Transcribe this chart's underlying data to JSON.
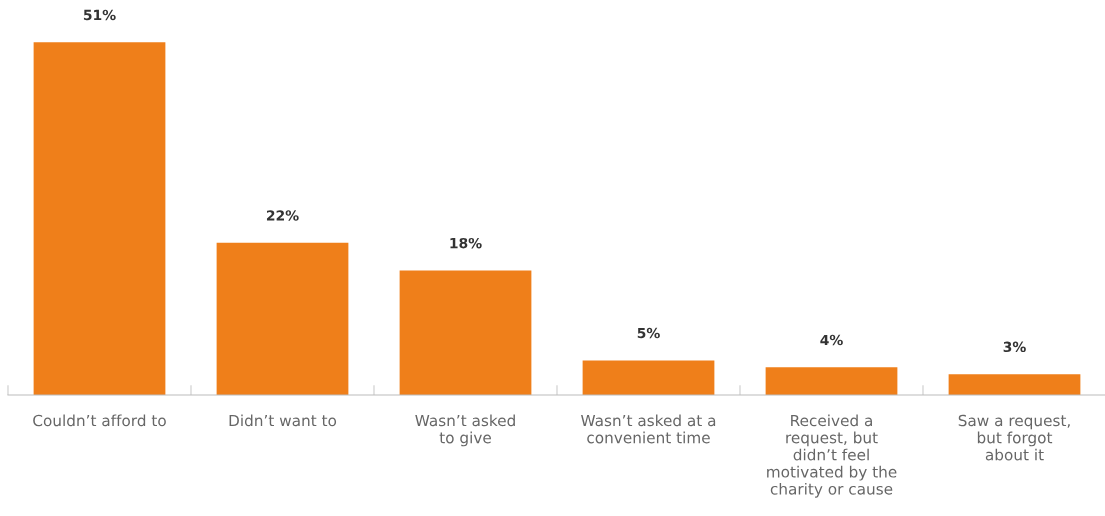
{
  "chart_data": {
    "type": "bar",
    "categories": [
      "Couldn’t afford to",
      "Didn’t want to",
      "Wasn’t asked\nto give",
      "Wasn’t asked at a\nconvenient time",
      "Received a\nrequest, but\ndidn’t feel\nmotivated by the\ncharity or cause",
      "Saw a request,\nbut forgot\nabout it"
    ],
    "values": [
      51,
      22,
      18,
      5,
      4,
      3
    ],
    "value_labels": [
      "51%",
      "22%",
      "18%",
      "5%",
      "4%",
      "3%"
    ],
    "color": "#ef7f1a",
    "tick_labels": "x",
    "grid": false,
    "legend": false
  }
}
